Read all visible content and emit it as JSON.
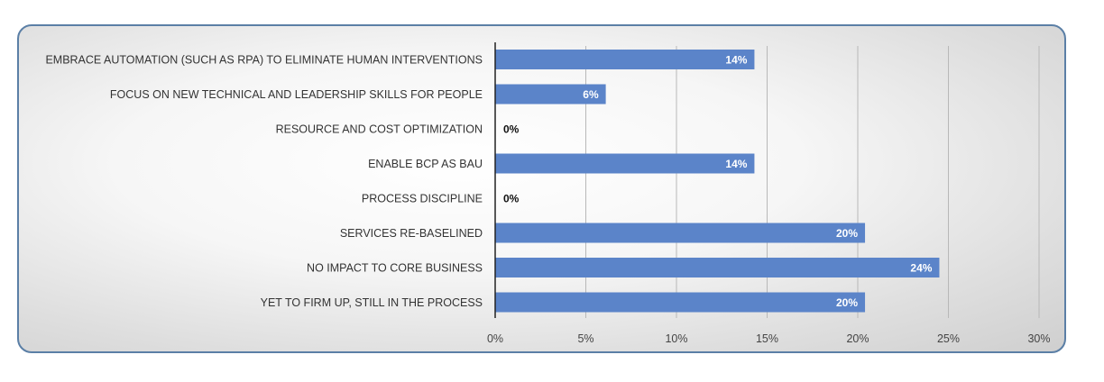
{
  "chart_data": {
    "type": "bar",
    "orientation": "horizontal",
    "title": "",
    "xlabel": "",
    "ylabel": "",
    "categories": [
      "EMBRACE AUTOMATION (SUCH AS RPA) TO ELIMINATE HUMAN INTERVENTIONS",
      "FOCUS ON NEW TECHNICAL AND LEADERSHIP SKILLS FOR PEOPLE",
      "RESOURCE AND COST OPTIMIZATION",
      "ENABLE BCP AS BAU",
      "PROCESS DISCIPLINE",
      "SERVICES RE-BASELINED",
      "NO IMPACT TO CORE BUSINESS",
      "YET TO FIRM UP, STILL IN THE PROCESS"
    ],
    "values": [
      14.3,
      6.1,
      0,
      14.3,
      0,
      20.4,
      24.5,
      20.4
    ],
    "data_labels": [
      "14%",
      "6%",
      "0%",
      "14%",
      "0%",
      "20%",
      "24%",
      "20%"
    ],
    "xlim": [
      0,
      30
    ],
    "ticks": [
      0,
      5,
      10,
      15,
      20,
      25,
      30
    ],
    "tick_labels": [
      "0%",
      "5%",
      "10%",
      "15%",
      "20%",
      "25%",
      "30%"
    ],
    "grid": "vertical",
    "legend": "none",
    "bar_color": "#5b84c9",
    "grid_color": "#b8b8b8",
    "axis_color": "#222222"
  }
}
